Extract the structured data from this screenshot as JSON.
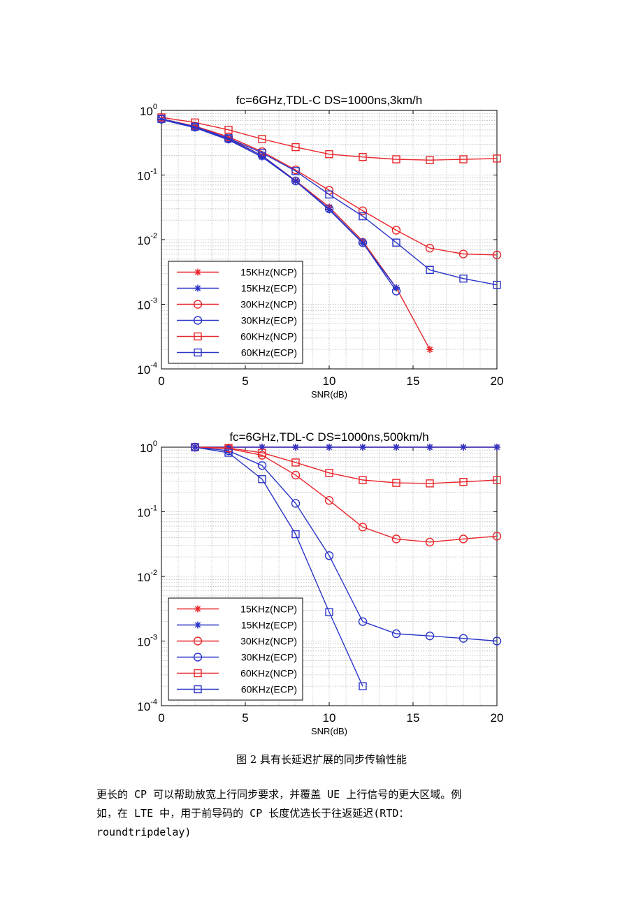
{
  "chart_data": [
    {
      "type": "line",
      "title": "fc=6GHz,TDL-C DS=1000ns,3km/h",
      "xlabel": "SNR(dB)",
      "ylabel": "",
      "xlim": [
        0,
        20
      ],
      "ylim": [
        0.0001,
        1
      ],
      "yscale": "log",
      "grid": true,
      "legend_position": "bottom-left",
      "x_ticks": [
        "0",
        "5",
        "10",
        "15",
        "20"
      ],
      "y_ticks": [
        {
          "base": "10",
          "exp": "0"
        },
        {
          "base": "10",
          "exp": "-1"
        },
        {
          "base": "10",
          "exp": "-2"
        },
        {
          "base": "10",
          "exp": "-3"
        },
        {
          "base": "10",
          "exp": "-4"
        }
      ],
      "series": [
        {
          "name": "15KHz(NCP)",
          "color": "#e8262b",
          "marker": "star",
          "x": [
            0,
            2,
            4,
            6,
            8,
            10,
            12,
            14,
            16
          ],
          "values": [
            0.73,
            0.56,
            0.37,
            0.2,
            0.082,
            0.032,
            0.0095,
            0.0018,
            0.0002
          ]
        },
        {
          "name": "15KHz(ECP)",
          "color": "#2a35c8",
          "marker": "star",
          "x": [
            0,
            2,
            4,
            6,
            8,
            10,
            12,
            14
          ],
          "values": [
            0.72,
            0.54,
            0.35,
            0.19,
            0.08,
            0.029,
            0.0088,
            0.0018
          ]
        },
        {
          "name": "30KHz(NCP)",
          "color": "#e8262b",
          "marker": "circle",
          "x": [
            0,
            2,
            4,
            6,
            8,
            10,
            12,
            14,
            16,
            18,
            20
          ],
          "values": [
            0.74,
            0.57,
            0.39,
            0.23,
            0.12,
            0.058,
            0.028,
            0.014,
            0.0074,
            0.006,
            0.0058
          ]
        },
        {
          "name": "30KHz(ECP)",
          "color": "#2a35c8",
          "marker": "circle",
          "x": [
            0,
            2,
            4,
            6,
            8,
            10,
            12,
            14
          ],
          "values": [
            0.73,
            0.55,
            0.36,
            0.2,
            0.081,
            0.03,
            0.009,
            0.0016
          ]
        },
        {
          "name": "60KHz(NCP)",
          "color": "#e8262b",
          "marker": "square",
          "x": [
            0,
            2,
            4,
            6,
            8,
            10,
            12,
            14,
            16,
            18,
            20
          ],
          "values": [
            0.78,
            0.65,
            0.5,
            0.36,
            0.27,
            0.21,
            0.19,
            0.175,
            0.17,
            0.175,
            0.18
          ]
        },
        {
          "name": "60KHz(ECP)",
          "color": "#2a35c8",
          "marker": "square",
          "x": [
            0,
            2,
            4,
            6,
            8,
            10,
            12,
            14,
            16,
            18,
            20
          ],
          "values": [
            0.74,
            0.56,
            0.37,
            0.22,
            0.115,
            0.05,
            0.023,
            0.009,
            0.0034,
            0.0025,
            0.002
          ]
        }
      ]
    },
    {
      "type": "line",
      "title": "fc=6GHz,TDL-C DS=1000ns,500km/h",
      "xlabel": "SNR(dB)",
      "ylabel": "",
      "xlim": [
        0,
        20
      ],
      "ylim": [
        0.0001,
        1
      ],
      "yscale": "log",
      "grid": true,
      "legend_position": "bottom-left",
      "x_ticks": [
        "0",
        "5",
        "10",
        "15",
        "20"
      ],
      "y_ticks": [
        {
          "base": "10",
          "exp": "0"
        },
        {
          "base": "10",
          "exp": "-1"
        },
        {
          "base": "10",
          "exp": "-2"
        },
        {
          "base": "10",
          "exp": "-3"
        },
        {
          "base": "10",
          "exp": "-4"
        }
      ],
      "series": [
        {
          "name": "15KHz(NCP)",
          "color": "#e8262b",
          "marker": "star",
          "x": [
            2,
            4,
            6,
            8,
            10,
            12,
            14,
            16,
            18,
            20
          ],
          "values": [
            1,
            1,
            1,
            1,
            1,
            1,
            1,
            1,
            1,
            1
          ]
        },
        {
          "name": "15KHz(ECP)",
          "color": "#2a35c8",
          "marker": "star",
          "x": [
            2,
            4,
            6,
            8,
            10,
            12,
            14,
            16,
            18,
            20
          ],
          "values": [
            1,
            1,
            1,
            1,
            1,
            1,
            1,
            1,
            1,
            1
          ]
        },
        {
          "name": "30KHz(NCP)",
          "color": "#e8262b",
          "marker": "circle",
          "x": [
            2,
            4,
            6,
            8,
            10,
            12,
            14,
            16,
            18,
            20
          ],
          "values": [
            1,
            0.95,
            0.75,
            0.37,
            0.15,
            0.058,
            0.038,
            0.034,
            0.038,
            0.042
          ]
        },
        {
          "name": "30KHz(ECP)",
          "color": "#2a35c8",
          "marker": "circle",
          "x": [
            2,
            4,
            6,
            8,
            10,
            12,
            14,
            16,
            18,
            20
          ],
          "values": [
            1,
            0.88,
            0.52,
            0.135,
            0.021,
            0.002,
            0.0013,
            0.0012,
            0.0011,
            0.001
          ]
        },
        {
          "name": "60KHz(NCP)",
          "color": "#e8262b",
          "marker": "square",
          "x": [
            2,
            4,
            6,
            8,
            10,
            12,
            14,
            16,
            18,
            20
          ],
          "values": [
            1,
            0.97,
            0.82,
            0.58,
            0.4,
            0.31,
            0.28,
            0.275,
            0.29,
            0.31
          ]
        },
        {
          "name": "60KHz(ECP)",
          "color": "#2a35c8",
          "marker": "square",
          "x": [
            2,
            4,
            6,
            8,
            10,
            12
          ],
          "values": [
            1,
            0.82,
            0.32,
            0.045,
            0.0028,
            0.0002
          ]
        }
      ]
    }
  ],
  "caption": "图 2 具有长延迟扩展的同步传输性能",
  "body_text": [
    "更长的 CP 可以帮助放宽上行同步要求，并覆盖 UE 上行信号的更大区域。例",
    "如，在 LTE 中，用于前导码的 CP 长度优选长于往返延迟(RTD：",
    "roundtripdelay)"
  ]
}
